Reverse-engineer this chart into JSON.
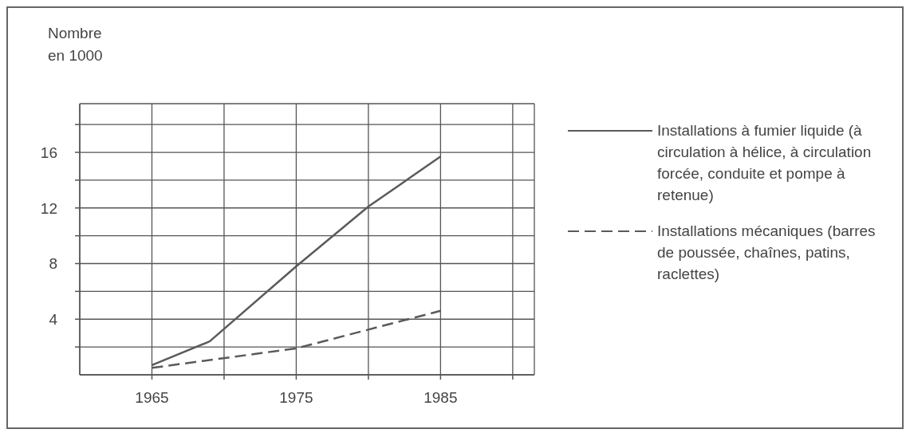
{
  "chart_data": {
    "type": "line",
    "ylabel": "Nombre en 1000",
    "xlim": [
      1960,
      1991.5
    ],
    "ylim": [
      0,
      19.5
    ],
    "xticks": [
      {
        "value": 1965,
        "label": "1965"
      },
      {
        "value": 1970,
        "label": null
      },
      {
        "value": 1975,
        "label": "1975"
      },
      {
        "value": 1980,
        "label": null
      },
      {
        "value": 1985,
        "label": "1985"
      },
      {
        "value": 1990,
        "label": null
      }
    ],
    "yticks": [
      {
        "value": 2,
        "label": null
      },
      4,
      {
        "value": 6,
        "label": null
      },
      8,
      {
        "value": 10,
        "label": null
      },
      12,
      {
        "value": 14,
        "label": null
      },
      16,
      {
        "value": 18,
        "label": null
      }
    ],
    "grid": true,
    "legend": "right",
    "marker": "none",
    "series": [
      {
        "name": "Installations à fumier liquide (à circulation à hélice, à circulation forcée, conduite et pompe à retenue)",
        "color": "#5a5a5a",
        "line_style": "solid",
        "x": [
          1965,
          1969,
          1975,
          1980,
          1985
        ],
        "values": [
          0.7,
          2.4,
          7.8,
          12.1,
          15.7
        ]
      },
      {
        "name": "Installations mécaniques (barres de poussée, chaînes, patins, raclettes)",
        "color": "#5a5a5a",
        "line_style": "dashed",
        "x": [
          1965,
          1975,
          1985
        ],
        "values": [
          0.5,
          1.9,
          4.6
        ]
      }
    ]
  }
}
